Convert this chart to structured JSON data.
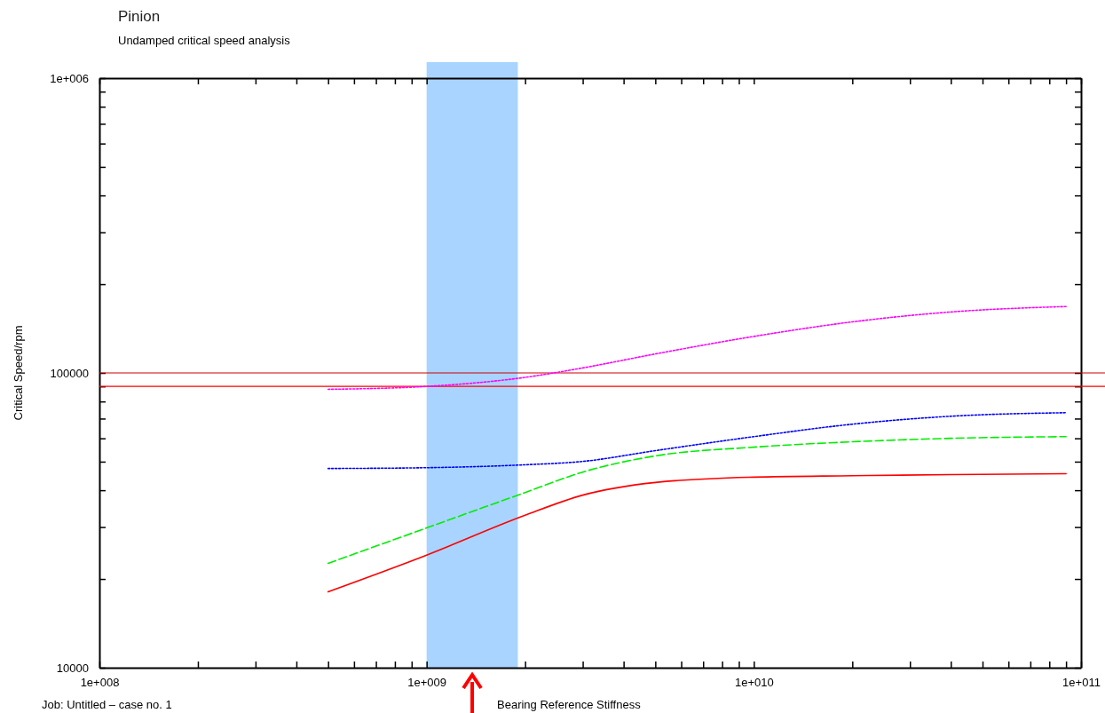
{
  "chart_data": {
    "type": "line",
    "title": "Pinion",
    "subtitle": "Undamped critical speed analysis",
    "xlabel": "Bearing Reference Stiffness",
    "ylabel": "Critical Speed/rpm",
    "annotations": [
      "Job: Untitled – case no. 1"
    ],
    "log": "xy",
    "grid": false,
    "marker": "none",
    "xlim": [
      100000000,
      100000000000
    ],
    "ylim": [
      10000,
      1000000
    ],
    "xticks": [
      {
        "value": 100000000,
        "label": "1e+008"
      },
      {
        "value": 200000000,
        "label": null
      },
      {
        "value": 300000000,
        "label": null
      },
      {
        "value": 400000000,
        "label": null
      },
      {
        "value": 500000000,
        "label": null
      },
      {
        "value": 600000000,
        "label": null
      },
      {
        "value": 700000000,
        "label": null
      },
      {
        "value": 800000000,
        "label": null
      },
      {
        "value": 900000000,
        "label": null
      },
      {
        "value": 1000000000,
        "label": "1e+009"
      },
      {
        "value": 2000000000,
        "label": null
      },
      {
        "value": 3000000000,
        "label": null
      },
      {
        "value": 4000000000,
        "label": null
      },
      {
        "value": 5000000000,
        "label": null
      },
      {
        "value": 6000000000,
        "label": null
      },
      {
        "value": 7000000000,
        "label": null
      },
      {
        "value": 8000000000,
        "label": null
      },
      {
        "value": 9000000000,
        "label": null
      },
      {
        "value": 10000000000,
        "label": "1e+010"
      },
      {
        "value": 20000000000,
        "label": null
      },
      {
        "value": 30000000000,
        "label": null
      },
      {
        "value": 40000000000,
        "label": null
      },
      {
        "value": 50000000000,
        "label": null
      },
      {
        "value": 60000000000,
        "label": null
      },
      {
        "value": 70000000000,
        "label": null
      },
      {
        "value": 80000000000,
        "label": null
      },
      {
        "value": 90000000000,
        "label": null
      },
      {
        "value": 100000000000,
        "label": "1e+011"
      }
    ],
    "yticks": [
      10000,
      {
        "value": 20000,
        "label": null
      },
      {
        "value": 30000,
        "label": null
      },
      {
        "value": 40000,
        "label": null
      },
      {
        "value": 50000,
        "label": null
      },
      {
        "value": 60000,
        "label": null
      },
      {
        "value": 70000,
        "label": null
      },
      {
        "value": 80000,
        "label": null
      },
      {
        "value": 90000,
        "label": null
      },
      100000,
      {
        "value": 200000,
        "label": null
      },
      {
        "value": 300000,
        "label": null
      },
      {
        "value": 400000,
        "label": null
      },
      {
        "value": 500000,
        "label": null
      },
      {
        "value": 600000,
        "label": null
      },
      {
        "value": 700000,
        "label": null
      },
      {
        "value": 800000,
        "label": null
      },
      {
        "value": 900000,
        "label": null
      },
      {
        "value": 1000000,
        "label": "1e+006"
      }
    ],
    "x": [
      500000000,
      1000000000,
      2000000000,
      3000000000,
      5000000000,
      10000000000,
      20000000000,
      40000000000,
      90000000000
    ],
    "series": [
      {
        "color": "#ff00ff",
        "line_style": "dotted",
        "values": [
          88000,
          90000,
          96600,
          104000,
          116000,
          133000,
          149000,
          161000,
          168000
        ]
      },
      {
        "color": "#0000ff",
        "line_style": "dotted",
        "values": [
          47400,
          47700,
          48800,
          50100,
          54500,
          60800,
          67000,
          71300,
          73300
        ]
      },
      {
        "color": "#00ee00",
        "line_style": "dashed",
        "values": [
          22600,
          29800,
          39300,
          46100,
          52300,
          56000,
          58400,
          60000,
          60800
        ]
      },
      {
        "color": "#ff0000",
        "line_style": "solid",
        "values": [
          18100,
          24100,
          32900,
          38500,
          42500,
          44300,
          44800,
          45200,
          45500
        ]
      }
    ],
    "ref_lines": [
      {
        "axis": "y",
        "value": 100000,
        "color": "#cc0000"
      },
      {
        "axis": "y",
        "value": 90000,
        "color": "#ff0000"
      }
    ],
    "bands": [
      {
        "axis": "x",
        "from": 1000000000,
        "to": 1900000000,
        "color": "#99ccff"
      }
    ]
  }
}
